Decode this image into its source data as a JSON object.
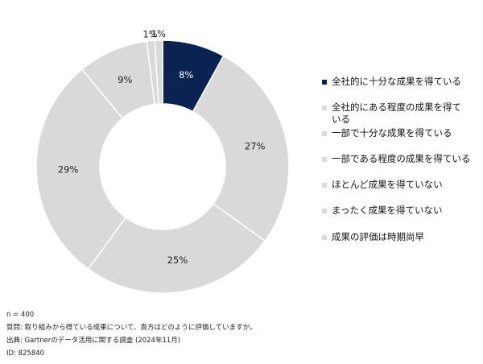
{
  "chart_data": {
    "type": "pie",
    "categories": [
      "全社的に十分な成果を得ている",
      "全社的にある程度の成果を得ている",
      "一部で十分な成果を得ている",
      "一部である程度の成果を得ている",
      "ほとんど成果を得ていない",
      "まったく成果を得ていない",
      "成果の評価は時期尚早"
    ],
    "legend_labels": [
      "全社的に十分な成果を得ている",
      "全社的にある程度の成果を得て\nいる",
      "一部で十分な成果を得ている",
      "一部である程度の成果を得ている",
      "ほとんど成果を得ていない",
      "まったく成果を得ていない",
      "成果の評価は時期尚早"
    ],
    "values": [
      8,
      27,
      25,
      29,
      9,
      1,
      1
    ],
    "data_labels": [
      "8%",
      "27%",
      "25%",
      "29%",
      "9%",
      "1%",
      "1%"
    ],
    "colors": [
      "#0a2352",
      "#d9d9d9",
      "#d9d9d9",
      "#d9d9d9",
      "#d9d9d9",
      "#d9d9d9",
      "#d9d9d9"
    ],
    "label_colors": [
      "#ffffff",
      "#222222",
      "#222222",
      "#222222",
      "#222222",
      "#222222",
      "#222222"
    ],
    "donut": true,
    "legend_position": "right"
  },
  "footnotes": {
    "n": "n = 400",
    "question": "質問: 取り組みから得ている成果について、貴方はどのように評価していますか。",
    "source": "出典: Gartnerのデータ活用に関する調査 (2024年11月)",
    "id": "ID: 825840"
  }
}
